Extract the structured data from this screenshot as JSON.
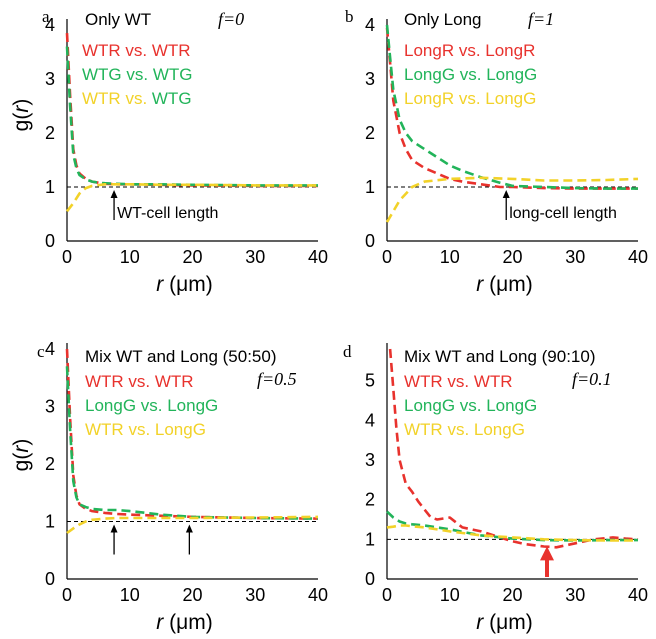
{
  "colors": {
    "red": "#e8322d",
    "green": "#22b45a",
    "yellow": "#f2d229",
    "axis": "#000000",
    "reference": "#000000",
    "arrow_red": "#e8322d"
  },
  "chart_data": [
    {
      "panel_letter": "a",
      "type": "line",
      "title": "Only WT",
      "f_label": "f=0",
      "xlabel_var": "r",
      "xlabel_unit": "(μm)",
      "ylabel_var": "g(",
      "ylabel_r": "r",
      "ylabel_close": ")",
      "xlim": [
        0,
        40
      ],
      "ylim": [
        0,
        4
      ],
      "xticks": [
        0,
        10,
        20,
        30,
        40
      ],
      "yticks": [
        0,
        1,
        2,
        3,
        4
      ],
      "reference_y": 1,
      "legend": [
        {
          "parts": [
            {
              "text": "WTR vs. WTR",
              "color": "red"
            }
          ]
        },
        {
          "parts": [
            {
              "text": "WTG vs. WTG",
              "color": "green"
            }
          ]
        },
        {
          "parts": [
            {
              "text": "WTR",
              "color": "yellow"
            },
            {
              "text": " vs. ",
              "color": "yellow"
            },
            {
              "text": "WTG",
              "color": "green"
            }
          ]
        }
      ],
      "series": [
        {
          "color": "red",
          "x": [
            0,
            0.5,
            1,
            1.5,
            2,
            3,
            4,
            5,
            6,
            8,
            10,
            15,
            20,
            30,
            40
          ],
          "y": [
            3.85,
            2.7,
            1.7,
            1.4,
            1.25,
            1.15,
            1.1,
            1.08,
            1.06,
            1.05,
            1.05,
            1.04,
            1.03,
            1.02,
            1.02
          ]
        },
        {
          "color": "green",
          "x": [
            0,
            0.5,
            1,
            1.5,
            2,
            3,
            4,
            5,
            6,
            8,
            10,
            15,
            20,
            30,
            40
          ],
          "y": [
            3.6,
            2.5,
            1.6,
            1.35,
            1.22,
            1.14,
            1.1,
            1.08,
            1.07,
            1.06,
            1.05,
            1.05,
            1.04,
            1.03,
            1.03
          ]
        },
        {
          "color": "yellow",
          "x": [
            0,
            1,
            2,
            3,
            4,
            6,
            8,
            10,
            15,
            20,
            30,
            40
          ],
          "y": [
            0.55,
            0.7,
            0.88,
            0.98,
            1.02,
            1.05,
            1.05,
            1.05,
            1.04,
            1.04,
            1.03,
            1.03
          ]
        }
      ],
      "annotations": [
        {
          "x": 7.5,
          "text": "WT-cell length",
          "color": "black"
        }
      ]
    },
    {
      "panel_letter": "b",
      "type": "line",
      "title": "Only Long",
      "f_label": "f=1",
      "xlabel_var": "r",
      "xlabel_unit": "(μm)",
      "ylabel_var": "",
      "ylabel_r": "",
      "ylabel_close": "",
      "xlim": [
        0,
        40
      ],
      "ylim": [
        0,
        4
      ],
      "xticks": [
        0,
        10,
        20,
        30,
        40
      ],
      "yticks": [
        0,
        1,
        2,
        3,
        4
      ],
      "reference_y": 1,
      "legend": [
        {
          "parts": [
            {
              "text": "LongR vs. LongR",
              "color": "red"
            }
          ]
        },
        {
          "parts": [
            {
              "text": "LongG vs. LongG",
              "color": "green"
            }
          ]
        },
        {
          "parts": [
            {
              "text": "LongR",
              "color": "yellow"
            },
            {
              "text": " vs. ",
              "color": "yellow"
            },
            {
              "text": "LongG",
              "color": "yellow"
            }
          ]
        }
      ],
      "series": [
        {
          "color": "red",
          "x": [
            0,
            0.5,
            1,
            2,
            3,
            4,
            6,
            8,
            10,
            12,
            15,
            18,
            20,
            25,
            30,
            35,
            40
          ],
          "y": [
            3.95,
            3.3,
            2.6,
            2.0,
            1.7,
            1.5,
            1.35,
            1.25,
            1.15,
            1.1,
            1.05,
            1.0,
            1.0,
            0.98,
            0.97,
            0.97,
            0.97
          ]
        },
        {
          "color": "green",
          "x": [
            0,
            0.5,
            1,
            2,
            3,
            4,
            6,
            8,
            10,
            12,
            15,
            18,
            20,
            25,
            30,
            35,
            40
          ],
          "y": [
            4.0,
            3.4,
            2.8,
            2.25,
            2.0,
            1.85,
            1.7,
            1.55,
            1.4,
            1.3,
            1.18,
            1.08,
            1.02,
            1.0,
            0.98,
            0.97,
            0.97
          ]
        },
        {
          "color": "yellow",
          "x": [
            0,
            1,
            2,
            4,
            6,
            10,
            15,
            20,
            25,
            30,
            35,
            40
          ],
          "y": [
            0.35,
            0.55,
            0.75,
            1.0,
            1.1,
            1.15,
            1.17,
            1.15,
            1.12,
            1.12,
            1.13,
            1.15
          ]
        }
      ],
      "annotations": [
        {
          "x": 19,
          "text": "long-cell length",
          "color": "black"
        }
      ]
    },
    {
      "panel_letter": "c",
      "type": "line",
      "title": "Mix WT and Long (50:50)",
      "f_label": "f=0.5",
      "xlabel_var": "r",
      "xlabel_unit": "(μm)",
      "ylabel_var": "g(",
      "ylabel_r": "r",
      "ylabel_close": ")",
      "xlim": [
        0,
        40
      ],
      "ylim": [
        0,
        4
      ],
      "xticks": [
        0,
        10,
        20,
        30,
        40
      ],
      "yticks": [
        0,
        1,
        2,
        3,
        4
      ],
      "reference_y": 1,
      "legend": [
        {
          "parts": [
            {
              "text": "WTR vs. WTR",
              "color": "red"
            }
          ]
        },
        {
          "parts": [
            {
              "text": "LongG vs. LongG",
              "color": "green"
            }
          ]
        },
        {
          "parts": [
            {
              "text": "WTR",
              "color": "yellow"
            },
            {
              "text": " vs. ",
              "color": "yellow"
            },
            {
              "text": "LongG",
              "color": "yellow"
            }
          ]
        }
      ],
      "series": [
        {
          "color": "red",
          "x": [
            0,
            0.5,
            1,
            1.5,
            2,
            3,
            4,
            6,
            8,
            10,
            15,
            20,
            30,
            40
          ],
          "y": [
            4.0,
            2.8,
            1.8,
            1.45,
            1.3,
            1.22,
            1.18,
            1.15,
            1.13,
            1.12,
            1.1,
            1.08,
            1.06,
            1.05
          ]
        },
        {
          "color": "green",
          "x": [
            0,
            0.5,
            1,
            1.5,
            2,
            3,
            4,
            6,
            8,
            10,
            15,
            20,
            30,
            40
          ],
          "y": [
            3.7,
            2.6,
            1.7,
            1.42,
            1.3,
            1.25,
            1.22,
            1.2,
            1.2,
            1.18,
            1.12,
            1.08,
            1.06,
            1.05
          ]
        },
        {
          "color": "yellow",
          "x": [
            0,
            1,
            2,
            3,
            4,
            6,
            8,
            10,
            15,
            20,
            30,
            40
          ],
          "y": [
            0.8,
            0.88,
            0.95,
            1.0,
            1.03,
            1.05,
            1.06,
            1.06,
            1.06,
            1.06,
            1.07,
            1.08
          ]
        }
      ],
      "annotations": [
        {
          "x": 7.5,
          "text": "",
          "color": "black"
        },
        {
          "x": 19.5,
          "text": "",
          "color": "black"
        }
      ]
    },
    {
      "panel_letter": "d",
      "type": "line",
      "title": "Mix WT and Long (90:10)",
      "f_label": "f=0.1",
      "xlabel_var": "r",
      "xlabel_unit": "(μm)",
      "ylabel_var": "",
      "ylabel_r": "",
      "ylabel_close": "",
      "xlim": [
        0,
        40
      ],
      "ylim": [
        0,
        5.8
      ],
      "xticks": [
        0,
        10,
        20,
        30,
        40
      ],
      "yticks": [
        0,
        1,
        2,
        3,
        4,
        5
      ],
      "reference_y": 1,
      "legend": [
        {
          "parts": [
            {
              "text": "WTR vs. WTR",
              "color": "red"
            }
          ]
        },
        {
          "parts": [
            {
              "text": "LongG vs. LongG",
              "color": "green"
            }
          ]
        },
        {
          "parts": [
            {
              "text": "WTR",
              "color": "yellow"
            },
            {
              "text": " vs. ",
              "color": "yellow"
            },
            {
              "text": "LongG",
              "color": "yellow"
            }
          ]
        }
      ],
      "series": [
        {
          "color": "red",
          "x": [
            0.5,
            1,
            1.5,
            2,
            3,
            4,
            5,
            6,
            7,
            8,
            10,
            12,
            15,
            18,
            20,
            22,
            25,
            27,
            30,
            33,
            36,
            38,
            40
          ],
          "y": [
            5.8,
            4.8,
            3.8,
            3.0,
            2.4,
            2.2,
            1.95,
            1.75,
            1.55,
            1.5,
            1.55,
            1.3,
            1.2,
            1.05,
            0.95,
            0.88,
            0.82,
            0.8,
            0.9,
            1.0,
            1.05,
            1.02,
            1.0
          ]
        },
        {
          "color": "green",
          "x": [
            0,
            1,
            2,
            3,
            4,
            6,
            8,
            10,
            15,
            20,
            25,
            30,
            35,
            40
          ],
          "y": [
            1.7,
            1.55,
            1.45,
            1.4,
            1.38,
            1.35,
            1.3,
            1.25,
            1.1,
            1.02,
            0.98,
            0.97,
            0.98,
            0.98
          ]
        },
        {
          "color": "yellow",
          "x": [
            0,
            1,
            2,
            3,
            4,
            6,
            8,
            10,
            15,
            20,
            25,
            30,
            35,
            40
          ],
          "y": [
            1.3,
            1.32,
            1.35,
            1.35,
            1.33,
            1.3,
            1.25,
            1.2,
            1.1,
            1.05,
            1.0,
            0.98,
            0.97,
            0.97
          ]
        }
      ],
      "annotations": [
        {
          "x": 25.5,
          "text": "",
          "color": "arrow_red"
        }
      ]
    }
  ]
}
